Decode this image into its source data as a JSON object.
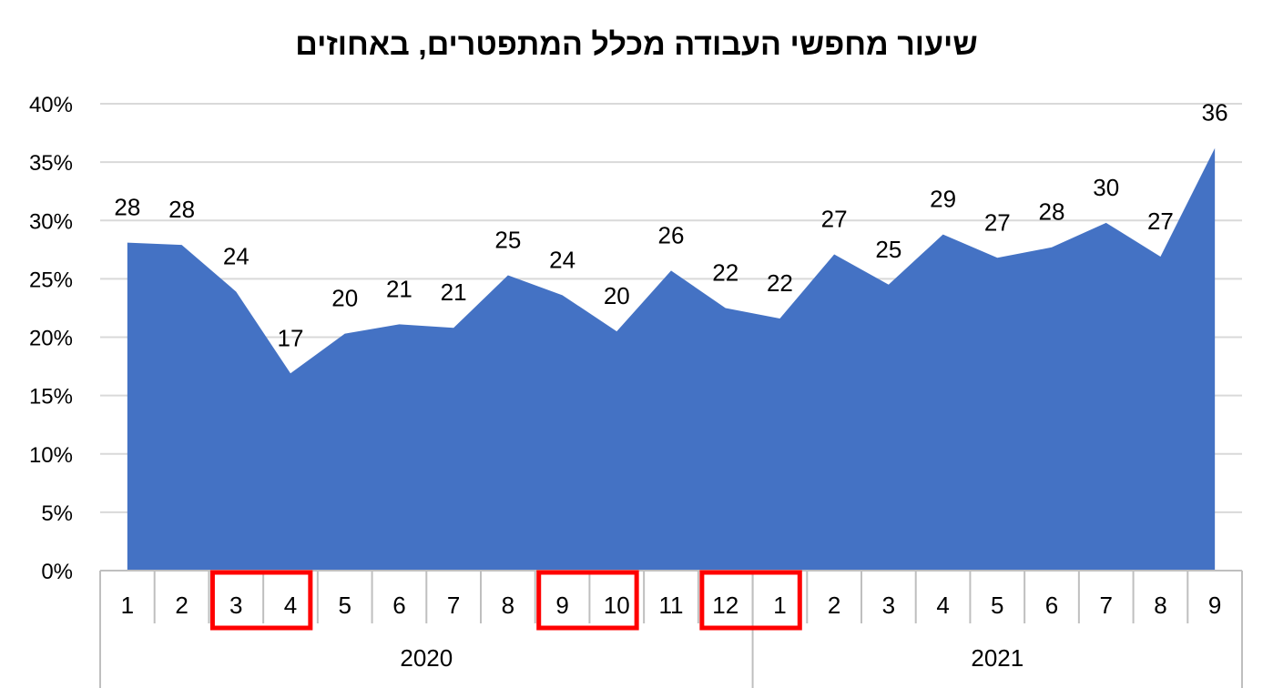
{
  "chart_data": {
    "type": "area",
    "title": "שיעור מחפשי העבודה מכלל המתפטרים, באחוזים",
    "xlabel": "",
    "ylabel": "",
    "y_ticks": [
      "0%",
      "5%",
      "10%",
      "15%",
      "20%",
      "25%",
      "30%",
      "35%",
      "40%"
    ],
    "ylim": [
      0,
      40
    ],
    "grid": true,
    "legend": "none",
    "categories": [
      "1",
      "2",
      "3",
      "4",
      "5",
      "6",
      "7",
      "8",
      "9",
      "10",
      "11",
      "12",
      "1",
      "2",
      "3",
      "4",
      "5",
      "6",
      "7",
      "8",
      "9"
    ],
    "groups": [
      {
        "label": "2020",
        "count": 12
      },
      {
        "label": "2021",
        "count": 9
      }
    ],
    "values": [
      28.1,
      27.9,
      23.9,
      16.9,
      20.3,
      21.1,
      20.8,
      25.3,
      23.6,
      20.5,
      25.7,
      22.5,
      21.6,
      27.1,
      24.5,
      28.8,
      26.8,
      27.7,
      29.8,
      26.9,
      36.2
    ],
    "data_labels": [
      "28",
      "28",
      "24",
      "17",
      "20",
      "21",
      "21",
      "25",
      "24",
      "20",
      "26",
      "22",
      "22",
      "27",
      "25",
      "29",
      "27",
      "28",
      "30",
      "27",
      "36"
    ],
    "highlighted_category_ranges": [
      [
        2,
        3
      ],
      [
        8,
        9
      ],
      [
        11,
        12
      ]
    ],
    "series_color": "#4472C4",
    "highlight_color": "#FF0000"
  }
}
